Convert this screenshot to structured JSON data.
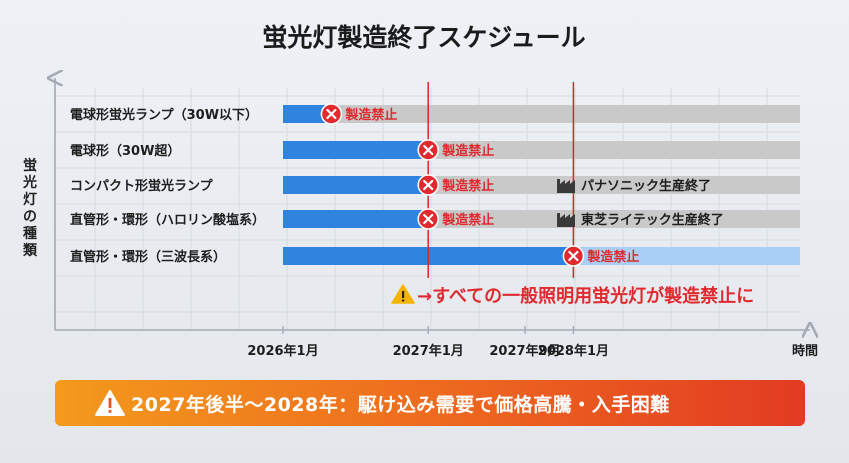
{
  "chart_data": {
    "type": "gantt",
    "title": "蛍光灯製造終了スケジュール",
    "ylabel": "蛍光灯の種類",
    "xlabel": "時間",
    "x_ticks": [
      "2026年1月",
      "2027年1月",
      "2027年9月",
      "2028年1月"
    ],
    "x_tick_values": [
      "2026-01",
      "2027-01",
      "2027-09",
      "2028-01"
    ],
    "reference_lines": [
      "2027-01",
      "2028-01"
    ],
    "rows": [
      {
        "label": "電球形蛍光ランプ（30W以下）",
        "ban_label": "製造禁止",
        "ban_date": "2026-05",
        "end_note": ""
      },
      {
        "label": "電球形（30W超）",
        "ban_label": "製造禁止",
        "ban_date": "2027-01",
        "end_note": ""
      },
      {
        "label": "コンパクト形蛍光ランプ",
        "ban_label": "製造禁止",
        "ban_date": "2027-01",
        "end_note": "パナソニック生産終了"
      },
      {
        "label": "直管形・環形（ハロリン酸塩系）",
        "ban_label": "製造禁止",
        "ban_date": "2027-01",
        "end_note": "東芝ライテック生産終了"
      },
      {
        "label": "直管形・環形（三波長系）",
        "ban_label": "製造禁止",
        "ban_date": "2028-01",
        "end_note": ""
      }
    ],
    "annotation": "→すべての一般照明用蛍光灯が製造禁止に",
    "banner": "2027年後半〜2028年：駆け込み需要で価格高騰・入手困難",
    "colors": {
      "active": "#2f84e0",
      "inactive": "#c9c9c9",
      "ban": "#e02a2f",
      "line": "#d8262b"
    }
  }
}
